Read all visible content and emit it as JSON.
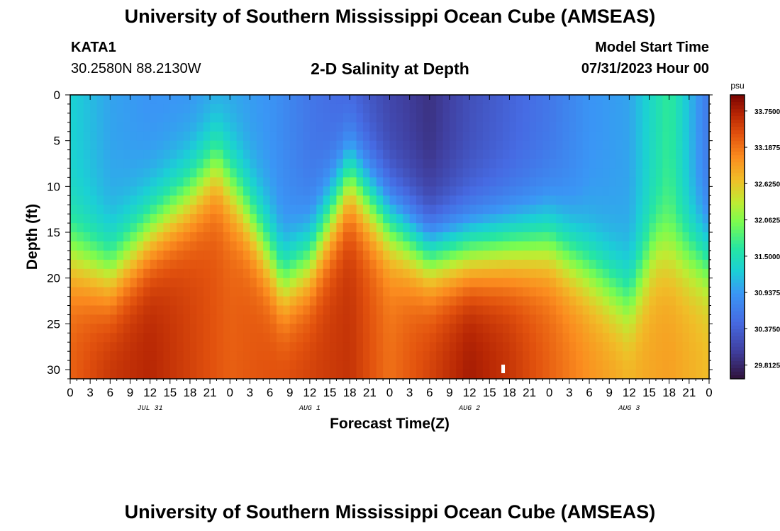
{
  "header": {
    "title": "University of Southern Mississippi Ocean Cube (AMSEAS)",
    "station": "KATA1",
    "coordinates": "30.2580N  88.2130W",
    "subtitle": "2-D Salinity at Depth",
    "model_start_label": "Model Start Time",
    "model_start_value": "07/31/2023 Hour 00"
  },
  "footer": {
    "title": "University of Southern Mississippi Ocean Cube (AMSEAS)"
  },
  "chart_data": {
    "type": "heatmap",
    "title": "2-D Salinity at Depth",
    "xlabel": "Forecast Time(Z)",
    "ylabel": "Depth (ft)",
    "x_tick_labels": [
      "0",
      "3",
      "6",
      "9",
      "12",
      "15",
      "18",
      "21",
      "0",
      "3",
      "6",
      "9",
      "12",
      "15",
      "18",
      "21",
      "0",
      "3",
      "6",
      "9",
      "12",
      "15",
      "18",
      "21",
      "0",
      "3",
      "6",
      "9",
      "12",
      "15",
      "18",
      "21",
      "0"
    ],
    "date_labels": [
      {
        "label": "JUL 31",
        "hour": 12
      },
      {
        "label": "AUG 1",
        "hour": 36
      },
      {
        "label": "AUG 2",
        "hour": 60
      },
      {
        "label": "AUG 3",
        "hour": 84
      }
    ],
    "xlim": [
      0,
      96
    ],
    "ylim": [
      0,
      31
    ],
    "y_ticks": [
      0,
      5,
      10,
      15,
      20,
      25,
      30
    ],
    "y_inverted": true,
    "colorbar": {
      "unit": "psu",
      "min": 29.6,
      "max": 34.0,
      "tick_labels": [
        "33.7500",
        "33.1875",
        "32.6250",
        "32.0625",
        "31.5000",
        "30.9375",
        "30.3750",
        "29.8125"
      ],
      "tick_values": [
        33.75,
        33.1875,
        32.625,
        32.0625,
        31.5,
        30.9375,
        30.375,
        29.8125
      ]
    },
    "surface_salinity_psu": {
      "hours": [
        0,
        6,
        12,
        18,
        24,
        30,
        36,
        42,
        48,
        54,
        60,
        66,
        72,
        78,
        84,
        90,
        96
      ],
      "values": [
        31.3,
        31.0,
        30.9,
        30.9,
        31.0,
        30.9,
        30.6,
        30.4,
        30.1,
        29.9,
        30.2,
        30.4,
        30.6,
        30.9,
        31.0,
        31.7,
        30.6
      ]
    },
    "halocline_depth_ft": {
      "hours": [
        0,
        6,
        12,
        18,
        22,
        26,
        32,
        36,
        42,
        48,
        54,
        60,
        66,
        72,
        78,
        84,
        88,
        96
      ],
      "values": [
        17.5,
        19.5,
        15.0,
        11.0,
        7.5,
        12.0,
        20.5,
        18.0,
        9.0,
        14.0,
        17.5,
        17.0,
        16.5,
        16.0,
        19.0,
        22.5,
        16.5,
        18.0
      ]
    },
    "bottom_salinity_psu": {
      "hours": [
        0,
        6,
        12,
        18,
        24,
        30,
        36,
        42,
        48,
        54,
        60,
        66,
        72,
        78,
        84,
        90,
        96
      ],
      "values": [
        33.3,
        33.6,
        33.7,
        33.5,
        33.3,
        33.4,
        33.5,
        33.6,
        33.2,
        33.5,
        33.8,
        33.6,
        33.3,
        33.0,
        32.8,
        32.9,
        32.7
      ]
    },
    "marker": {
      "hour": 65,
      "depth_ft": 30
    }
  }
}
